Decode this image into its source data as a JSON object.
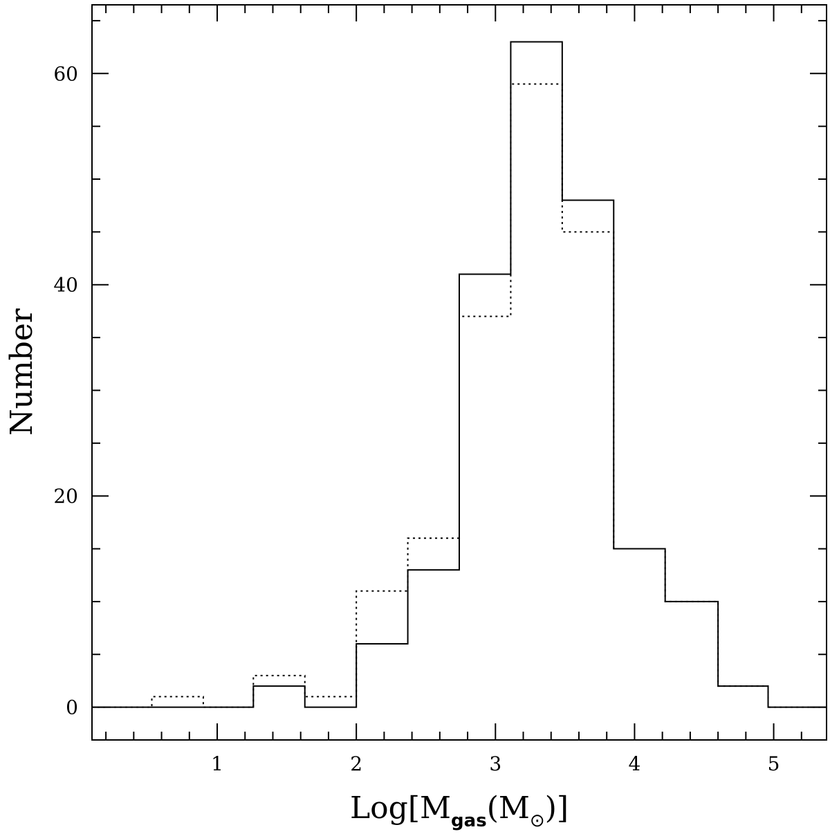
{
  "chart_data": {
    "type": "histogram",
    "title": "",
    "xlabel": {
      "base": "Log[M",
      "sub": "gas",
      "mid": "(M",
      "sub2": "⊙",
      "end": ")]"
    },
    "ylabel": "Number",
    "xlim": [
      0.1,
      5.38
    ],
    "ylim": [
      -3.1,
      66.5
    ],
    "xticks_major": [
      1,
      2,
      3,
      4,
      5
    ],
    "xtick_labels": [
      "1",
      "2",
      "3",
      "4",
      "5"
    ],
    "yticks_major": [
      0,
      20,
      40,
      60
    ],
    "ytick_labels": [
      "0",
      "20",
      "40",
      "60"
    ],
    "minor_x_step": 0.2,
    "minor_y_step": 5,
    "grid": false,
    "series": [
      {
        "style": "solid",
        "bin_edges": [
          0.1,
          0.53,
          0.9,
          1.26,
          1.63,
          2.0,
          2.37,
          2.74,
          3.11,
          3.48,
          3.85,
          4.22,
          4.6,
          4.96,
          5.38
        ],
        "counts": [
          0,
          0,
          0,
          2,
          0,
          6,
          13,
          41,
          63,
          48,
          15,
          10,
          2,
          0
        ]
      },
      {
        "style": "dotted",
        "bin_edges": [
          0.1,
          0.53,
          0.9,
          1.26,
          1.63,
          2.0,
          2.37,
          2.74,
          3.11,
          3.48,
          3.85,
          4.22,
          4.6,
          4.96,
          5.38
        ],
        "counts": [
          0,
          1,
          0,
          3,
          1,
          11,
          16,
          37,
          59,
          45,
          15,
          10,
          2,
          0
        ]
      }
    ]
  }
}
